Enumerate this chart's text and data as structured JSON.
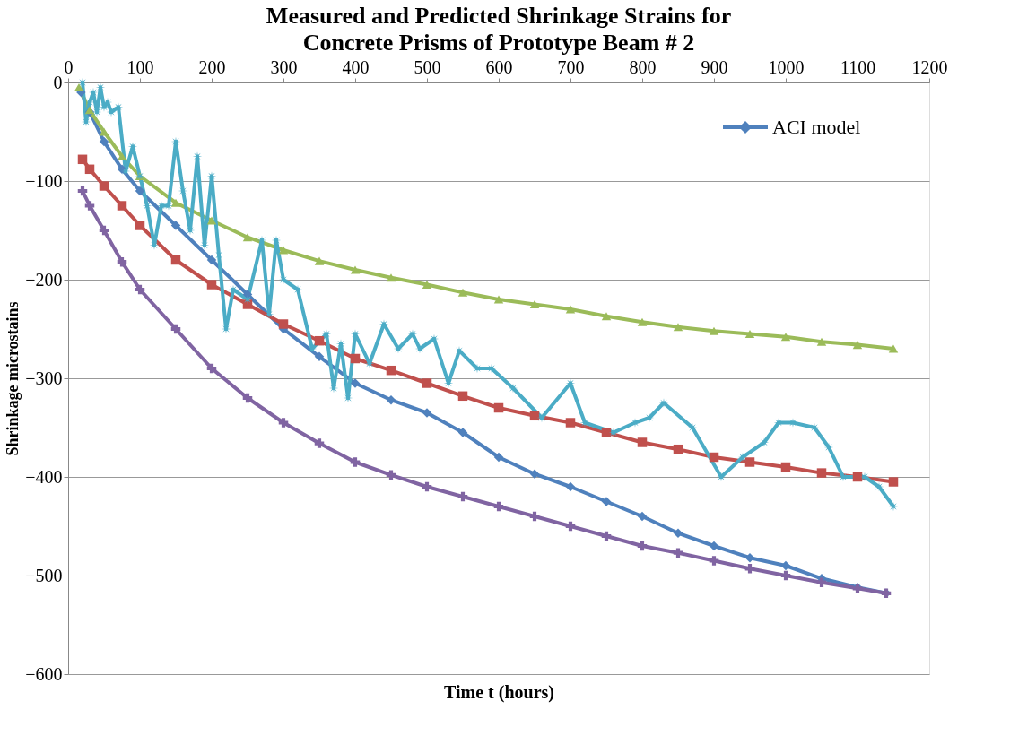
{
  "chart_data": {
    "type": "line",
    "title": "Measured and Predicted Shrinkage Strains for Concrete Prisms of Prototype Beam # 2",
    "xlabel": "Time t (hours)",
    "ylabel": "Shrinkage microstains",
    "xlim": [
      0,
      1200
    ],
    "xticks": [
      0,
      100,
      200,
      300,
      400,
      500,
      600,
      700,
      800,
      900,
      1000,
      1100,
      1200
    ],
    "ylim": [
      -600,
      0
    ],
    "yticks": [
      -600,
      -500,
      -400,
      -300,
      -200,
      -100,
      0
    ],
    "grid": "y",
    "legend": "top right",
    "line_style": "solid",
    "series": [
      {
        "name": "ACI model",
        "color": "#4f81bd",
        "marker": "diamond",
        "x": [
          18,
          30,
          50,
          75,
          100,
          150,
          200,
          250,
          300,
          350,
          400,
          450,
          500,
          550,
          600,
          650,
          700,
          750,
          800,
          850,
          900,
          950,
          1000,
          1050,
          1100,
          1140
        ],
        "values": [
          -10,
          -30,
          -60,
          -88,
          -110,
          -145,
          -180,
          -215,
          -250,
          -278,
          -305,
          -322,
          -335,
          -355,
          -380,
          -397,
          -410,
          -425,
          -440,
          -457,
          -470,
          -482,
          -490,
          -503,
          -512,
          -518
        ]
      },
      {
        "color": "#c0504d",
        "marker": "square",
        "x": [
          20,
          30,
          50,
          75,
          100,
          150,
          200,
          250,
          300,
          350,
          400,
          450,
          500,
          550,
          600,
          650,
          700,
          750,
          800,
          850,
          900,
          950,
          1000,
          1050,
          1100,
          1150
        ],
        "values": [
          -78,
          -88,
          -105,
          -125,
          -145,
          -180,
          -205,
          -225,
          -245,
          -262,
          -280,
          -292,
          -305,
          -318,
          -330,
          -338,
          -345,
          -355,
          -365,
          -372,
          -380,
          -385,
          -390,
          -396,
          -400,
          -405
        ]
      },
      {
        "color": "#9bbb59",
        "marker": "triangle",
        "x": [
          15,
          30,
          50,
          75,
          100,
          150,
          200,
          250,
          300,
          350,
          400,
          450,
          500,
          550,
          600,
          650,
          700,
          750,
          800,
          850,
          900,
          950,
          1000,
          1050,
          1100,
          1150
        ],
        "values": [
          -5,
          -28,
          -50,
          -75,
          -95,
          -122,
          -140,
          -157,
          -170,
          -181,
          -190,
          -198,
          -205,
          -213,
          -220,
          -225,
          -230,
          -237,
          -243,
          -248,
          -252,
          -255,
          -258,
          -263,
          -266,
          -270
        ]
      },
      {
        "color": "#8064a2",
        "marker": "cross",
        "x": [
          20,
          30,
          50,
          75,
          100,
          150,
          200,
          250,
          300,
          350,
          400,
          450,
          500,
          550,
          600,
          650,
          700,
          750,
          800,
          850,
          900,
          950,
          1000,
          1050,
          1100,
          1140
        ],
        "values": [
          -110,
          -125,
          -150,
          -182,
          -210,
          -250,
          -290,
          -320,
          -345,
          -366,
          -385,
          -398,
          -410,
          -420,
          -430,
          -440,
          -450,
          -460,
          -470,
          -477,
          -485,
          -493,
          -500,
          -507,
          -513,
          -518
        ]
      },
      {
        "color": "#4bacc6",
        "marker": "star",
        "x": [
          20,
          25,
          30,
          35,
          40,
          45,
          50,
          55,
          60,
          70,
          80,
          90,
          100,
          110,
          120,
          130,
          140,
          150,
          160,
          170,
          180,
          190,
          200,
          210,
          220,
          230,
          250,
          270,
          280,
          290,
          300,
          320,
          340,
          360,
          370,
          380,
          390,
          400,
          420,
          440,
          460,
          480,
          490,
          510,
          530,
          545,
          570,
          590,
          620,
          660,
          700,
          720,
          760,
          790,
          810,
          830,
          870,
          910,
          940,
          970,
          990,
          1010,
          1040,
          1060,
          1080,
          1110,
          1130,
          1150
        ],
        "values": [
          0,
          -40,
          -20,
          -10,
          -30,
          -5,
          -25,
          -20,
          -30,
          -25,
          -90,
          -65,
          -95,
          -125,
          -165,
          -125,
          -125,
          -60,
          -110,
          -150,
          -75,
          -165,
          -95,
          -175,
          -250,
          -210,
          -220,
          -160,
          -235,
          -160,
          -200,
          -210,
          -270,
          -255,
          -310,
          -265,
          -320,
          -255,
          -285,
          -245,
          -270,
          -255,
          -270,
          -260,
          -305,
          -272,
          -290,
          -290,
          -310,
          -340,
          -305,
          -345,
          -355,
          -345,
          -340,
          -325,
          -350,
          -400,
          -380,
          -365,
          -345,
          -345,
          -350,
          -370,
          -400,
          -400,
          -410,
          -430
        ]
      }
    ]
  }
}
